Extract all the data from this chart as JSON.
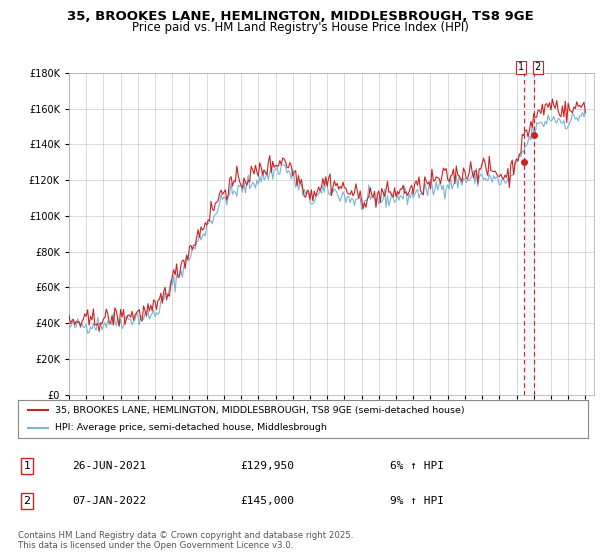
{
  "title": "35, BROOKES LANE, HEMLINGTON, MIDDLESBROUGH, TS8 9GE",
  "subtitle": "Price paid vs. HM Land Registry's House Price Index (HPI)",
  "legend_line1": "35, BROOKES LANE, HEMLINGTON, MIDDLESBROUGH, TS8 9GE (semi-detached house)",
  "legend_line2": "HPI: Average price, semi-detached house, Middlesbrough",
  "transaction1_date": "26-JUN-2021",
  "transaction1_price": "£129,950",
  "transaction1_hpi": "6% ↑ HPI",
  "transaction2_date": "07-JAN-2022",
  "transaction2_price": "£145,000",
  "transaction2_hpi": "9% ↑ HPI",
  "footer": "Contains HM Land Registry data © Crown copyright and database right 2025.\nThis data is licensed under the Open Government Licence v3.0.",
  "ylim": [
    0,
    180000
  ],
  "yticks": [
    0,
    20000,
    40000,
    60000,
    80000,
    100000,
    120000,
    140000,
    160000,
    180000
  ],
  "year_start": 1995,
  "year_end": 2025,
  "hpi_color": "#7ab3d4",
  "price_color": "#cc2222",
  "vline_color": "#cc2222",
  "shade_color": "#d0e8f5",
  "background_color": "#ffffff",
  "grid_color": "#cccccc",
  "title_fontsize": 9.5,
  "subtitle_fontsize": 8.5,
  "tick_fontsize": 7
}
